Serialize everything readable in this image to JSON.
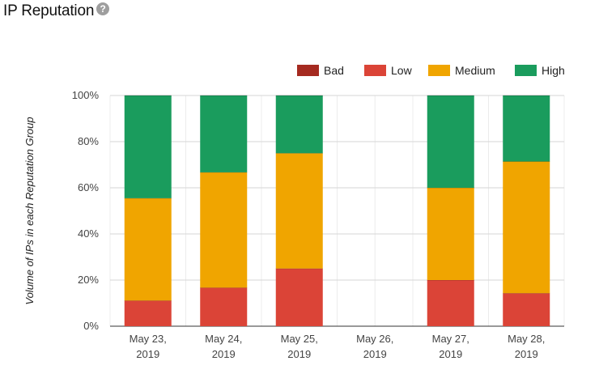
{
  "header": {
    "title": "IP Reputation",
    "help_icon": "help-circle-icon",
    "help_glyph": "?"
  },
  "chart_data": {
    "type": "bar",
    "stacked": true,
    "normalized": true,
    "title": "IP Reputation",
    "xlabel": "",
    "ylabel": "Volume of IPs in each Reputation Group",
    "ylim": [
      0,
      100
    ],
    "yticks": [
      0,
      20,
      40,
      60,
      80,
      100
    ],
    "ytick_suffix": "%",
    "grid": true,
    "legend_position": "top-right",
    "categories": [
      [
        "May 23,",
        "2019"
      ],
      [
        "May 24,",
        "2019"
      ],
      [
        "May 25,",
        "2019"
      ],
      [
        "May 26,",
        "2019"
      ],
      [
        "May 27,",
        "2019"
      ],
      [
        "May 28,",
        "2019"
      ]
    ],
    "series": [
      {
        "name": "Bad",
        "color": "#a52a20",
        "values": [
          0,
          0,
          0,
          0,
          0,
          0
        ]
      },
      {
        "name": "Low",
        "color": "#db4437",
        "values": [
          11.1,
          16.7,
          25,
          0,
          20,
          14.3
        ]
      },
      {
        "name": "Medium",
        "color": "#f0a500",
        "values": [
          44.4,
          50,
          50,
          0,
          40,
          57.1
        ]
      },
      {
        "name": "High",
        "color": "#1a9c5d",
        "values": [
          44.5,
          33.3,
          25,
          0,
          40,
          28.6
        ]
      }
    ]
  }
}
